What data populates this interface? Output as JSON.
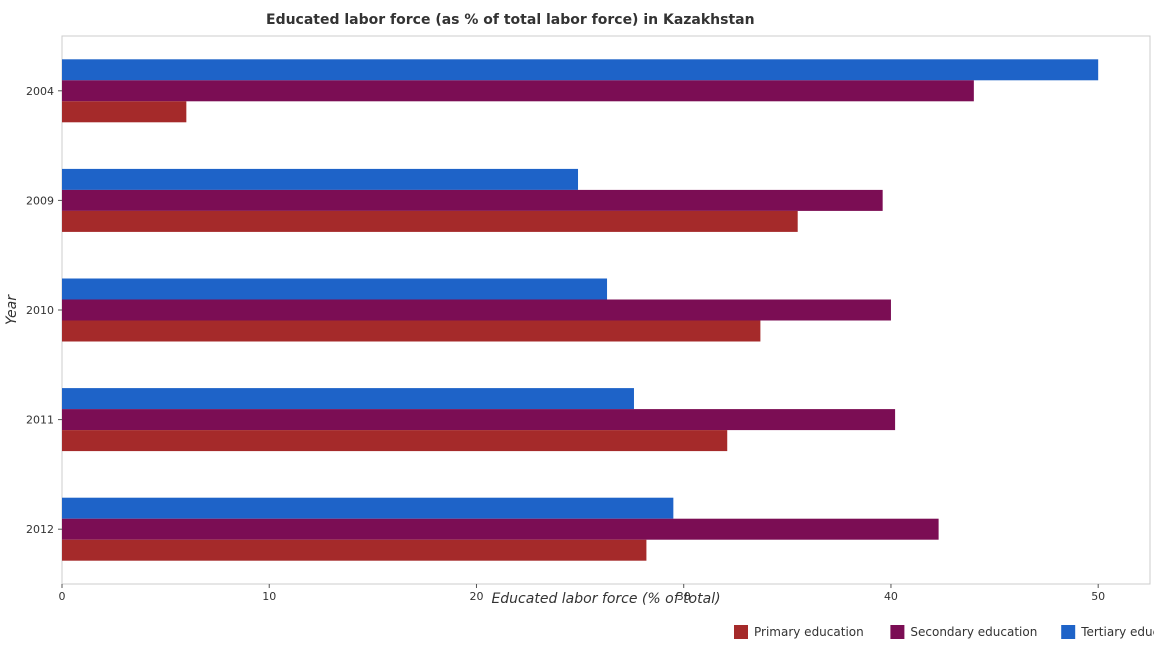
{
  "chart_data": {
    "type": "bar",
    "orientation": "horizontal",
    "title": "Educated labor force (as % of total labor force) in Kazakhstan",
    "xlabel": "Educated labor force (% of total)",
    "ylabel": "Year",
    "categories": [
      "2004",
      "2009",
      "2010",
      "2011",
      "2012"
    ],
    "xlim": [
      0,
      52.5
    ],
    "xticks": [
      0,
      10,
      20,
      30,
      40,
      50
    ],
    "grid": false,
    "legend_position": "bottom-right",
    "series": [
      {
        "name": "Primary education",
        "color": "#a52a2a",
        "values": [
          6.0,
          35.5,
          33.7,
          32.1,
          28.2
        ]
      },
      {
        "name": "Secondary education",
        "color": "#7b0d54",
        "values": [
          44.0,
          39.6,
          40.0,
          40.2,
          42.3
        ]
      },
      {
        "name": "Tertiary education",
        "color": "#1e63c8",
        "values": [
          50.0,
          24.9,
          26.3,
          27.6,
          29.5
        ]
      }
    ]
  }
}
